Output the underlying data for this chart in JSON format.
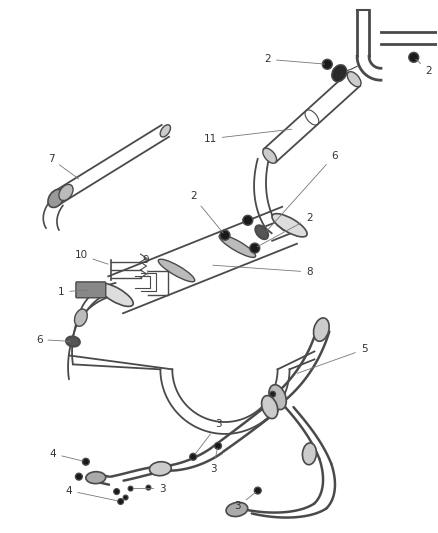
{
  "background_color": "#ffffff",
  "line_color": "#4a4a4a",
  "label_color": "#333333",
  "figsize": [
    4.38,
    5.33
  ],
  "dpi": 100,
  "pipe_lw": 1.4,
  "label_fontsize": 7.5
}
